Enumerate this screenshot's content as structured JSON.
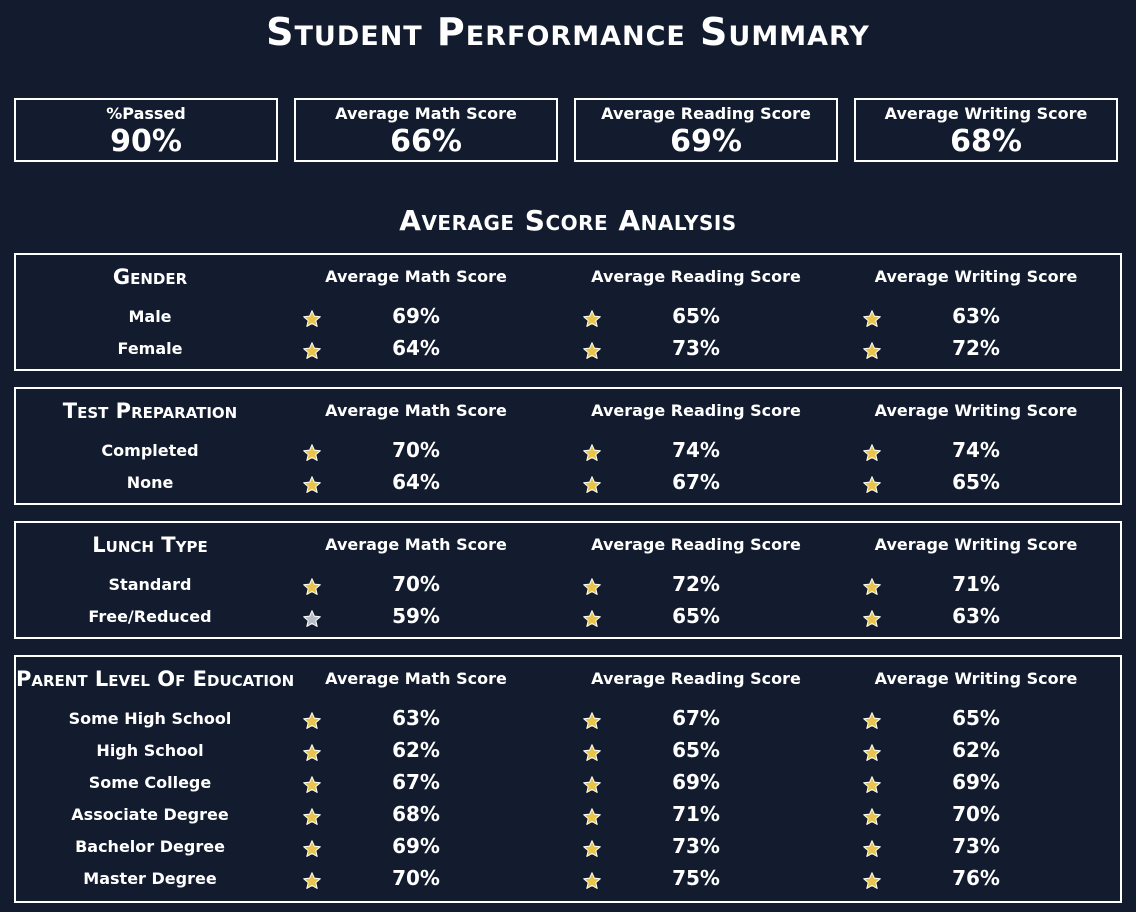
{
  "title": "Student Performance Summary",
  "kpis": [
    {
      "label": "%Passed",
      "value": "90%"
    },
    {
      "label": "Average Math Score",
      "value": "66%"
    },
    {
      "label": "Average Reading Score",
      "value": "69%"
    },
    {
      "label": "Average Writing Score",
      "value": "68%"
    }
  ],
  "analysis_title": "Average Score Analysis",
  "colors": {
    "background": "#131c2e",
    "text": "#ffffff",
    "star_gold": "#e8c44a",
    "star_silver": "#b8bcc6"
  },
  "panels": [
    {
      "title": "Gender",
      "headers": [
        "Average Math Score",
        "Average Reading Score",
        "Average Writing Score"
      ],
      "rows": [
        {
          "label": "Male",
          "values": [
            "69%",
            "65%",
            "63%"
          ]
        },
        {
          "label": "Female",
          "values": [
            "64%",
            "73%",
            "72%"
          ]
        }
      ]
    },
    {
      "title": "Test Preparation",
      "headers": [
        "Average Math Score",
        "Average Reading Score",
        "Average Writing Score"
      ],
      "rows": [
        {
          "label": "Completed",
          "values": [
            "70%",
            "74%",
            "74%"
          ]
        },
        {
          "label": "None",
          "values": [
            "64%",
            "67%",
            "65%"
          ]
        }
      ]
    },
    {
      "title": "Lunch Type",
      "headers": [
        "Average Math Score",
        "Average Reading Score",
        "Average Writing Score"
      ],
      "rows": [
        {
          "label": "Standard",
          "values": [
            "70%",
            "72%",
            "71%"
          ]
        },
        {
          "label": "Free/Reduced",
          "values": [
            "59%",
            "65%",
            "63%"
          ]
        }
      ]
    },
    {
      "title": "Parent Level Of Education",
      "headers": [
        "Average Math Score",
        "Average Reading Score",
        "Average Writing Score"
      ],
      "rows": [
        {
          "label": "Some High School",
          "values": [
            "63%",
            "67%",
            "65%"
          ]
        },
        {
          "label": "High School",
          "values": [
            "62%",
            "65%",
            "62%"
          ]
        },
        {
          "label": "Some College",
          "values": [
            "67%",
            "69%",
            "69%"
          ]
        },
        {
          "label": "Associate Degree",
          "values": [
            "68%",
            "71%",
            "70%"
          ]
        },
        {
          "label": "Bachelor Degree",
          "values": [
            "69%",
            "73%",
            "73%"
          ]
        },
        {
          "label": "Master Degree",
          "values": [
            "70%",
            "75%",
            "76%"
          ]
        }
      ]
    }
  ]
}
